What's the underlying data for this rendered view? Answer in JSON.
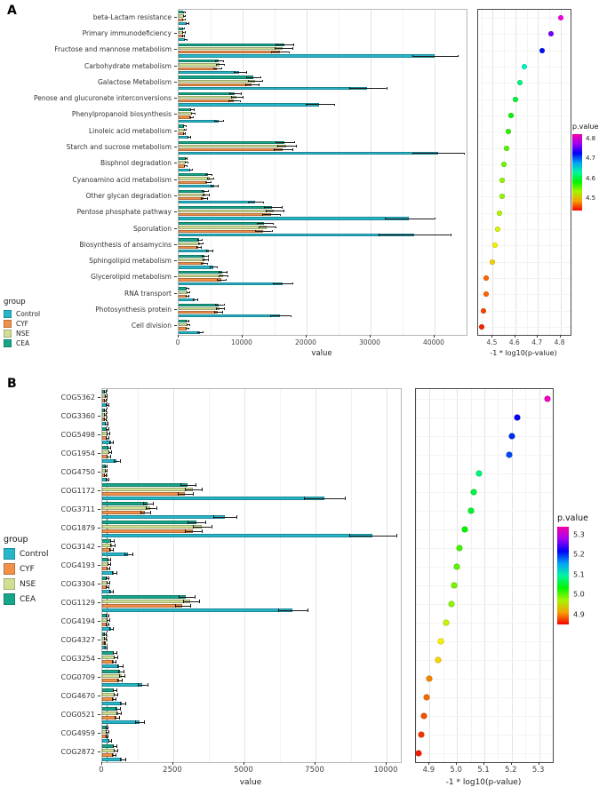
{
  "figure": {
    "panelA_letter": "A",
    "panelB_letter": "B"
  },
  "colors": {
    "group": {
      "Control": "#25b6c9",
      "CYF": "#f19048",
      "NSE": "#cfe095",
      "CEA": "#17a589"
    }
  },
  "legends": {
    "groupA": {
      "title": "group",
      "items": [
        "Control",
        "CYF",
        "NSE",
        "CEA"
      ]
    },
    "groupB": {
      "title": "group",
      "items": [
        "Control",
        "CYF",
        "NSE",
        "CEA"
      ]
    },
    "pvalueA": {
      "title": "p.value",
      "ticks": [
        "4.8",
        "4.7",
        "4.6",
        "4.5"
      ],
      "domain": [
        4.44,
        4.82
      ]
    },
    "pvalueB": {
      "title": "p.value",
      "ticks": [
        "5.3",
        "5.2",
        "5.1",
        "5.0",
        "4.9"
      ],
      "domain": [
        4.85,
        5.34
      ]
    }
  },
  "chart_data": [
    {
      "id": "barA",
      "type": "bar",
      "orientation": "horizontal",
      "panel": "A",
      "xlabel": "value",
      "xlim": [
        0,
        45000
      ],
      "xticks": [
        0,
        10000,
        20000,
        30000,
        40000
      ],
      "xtick_labels": [
        "0",
        "10000",
        "20000",
        "30000",
        "40000"
      ],
      "categories": [
        "beta-Lactam resistance",
        "Primary immunodeficiency",
        "Fructose and mannose metabolism",
        "Carbohydrate metabolism",
        "Galactose Metabolism",
        "Penose and glucuronate interconversions",
        "Phenylpropanoid biosynthesis",
        "Linoleic acid metabolism",
        "Starch and sucrose metabolism",
        "Bisphnol degradation",
        "Cyanoamino acid metabolism",
        "Other glycan degradation",
        "Pentose phosphate pathway",
        "Sporulation",
        "Biosynthesis of ansamycins",
        "Sphingolipid metabolism",
        "Glycerolipid metabolism",
        "RNA transport",
        "Photosynthesis protein",
        "Cell division"
      ],
      "series": [
        {
          "name": "Control",
          "color": "#25b6c9",
          "values": [
            1200,
            1000,
            40000,
            9500,
            29500,
            22000,
            6200,
            1500,
            40500,
            1800,
            5500,
            12000,
            36000,
            36800,
            4700,
            5400,
            16200,
            2500,
            15800,
            3300
          ],
          "errors": [
            150,
            120,
            3500,
            900,
            2800,
            2200,
            600,
            180,
            4000,
            200,
            500,
            1100,
            3800,
            5500,
            450,
            500,
            1500,
            250,
            1500,
            350
          ]
        },
        {
          "name": "CYF",
          "color": "#f19048",
          "values": [
            700,
            600,
            15800,
            6000,
            11400,
            8600,
            1900,
            800,
            16200,
            1000,
            4500,
            3900,
            14400,
            13200,
            3100,
            3900,
            6600,
            1200,
            6100,
            1200
          ],
          "errors": [
            90,
            80,
            1300,
            550,
            1000,
            800,
            200,
            100,
            1400,
            120,
            400,
            380,
            1300,
            1200,
            300,
            380,
            600,
            140,
            580,
            140
          ]
        },
        {
          "name": "NSE",
          "color": "#cfe095",
          "values": [
            800,
            700,
            16300,
            6400,
            11900,
            9000,
            2100,
            900,
            16800,
            1100,
            4800,
            4200,
            14900,
            13700,
            3300,
            4100,
            6900,
            1400,
            6400,
            1400
          ],
          "errors": [
            95,
            85,
            1350,
            580,
            1050,
            850,
            210,
            105,
            1450,
            125,
            420,
            400,
            1350,
            1250,
            310,
            390,
            620,
            150,
            600,
            150
          ]
        },
        {
          "name": "CEA",
          "color": "#17a589",
          "values": [
            750,
            650,
            16500,
            6200,
            11600,
            8800,
            2000,
            850,
            16500,
            1050,
            4600,
            4000,
            14600,
            13400,
            3200,
            4000,
            6800,
            1300,
            6300,
            1300
          ],
          "errors": [
            92,
            82,
            1320,
            560,
            1020,
            820,
            205,
            102,
            1420,
            122,
            410,
            390,
            1320,
            1220,
            305,
            385,
            610,
            145,
            590,
            145
          ]
        }
      ]
    },
    {
      "id": "dotA",
      "type": "scatter",
      "panel": "A",
      "xlabel": "-1 * log10(p-value)",
      "xlim": [
        4.435,
        4.845
      ],
      "xticks": [
        4.5,
        4.6,
        4.7,
        4.8
      ],
      "xtick_labels": [
        "4.5",
        "4.6",
        "4.7",
        "4.8"
      ],
      "categories_ref": "barA",
      "color_domain": [
        4.44,
        4.82
      ],
      "values": [
        4.8,
        4.76,
        4.72,
        4.64,
        4.62,
        4.6,
        4.58,
        4.57,
        4.56,
        4.55,
        4.54,
        4.54,
        4.53,
        4.52,
        4.51,
        4.5,
        4.47,
        4.47,
        4.46,
        4.45
      ]
    },
    {
      "id": "barB",
      "type": "bar",
      "orientation": "horizontal",
      "panel": "B",
      "xlabel": "value",
      "xlim": [
        0,
        10500
      ],
      "ref_line": 150,
      "xticks": [
        0,
        2500,
        5000,
        7500,
        10000
      ],
      "xtick_labels": [
        "0",
        "2500",
        "5000",
        "7500",
        "10000"
      ],
      "categories": [
        "COG5362",
        "COG3360",
        "COG5498",
        "COG1954",
        "COG4750",
        "COG1172",
        "COG3711",
        "COG1879",
        "COG3142",
        "COG4193",
        "COG3304",
        "COG1129",
        "COG4194",
        "COG4327",
        "COG3254",
        "COG0709",
        "COG4670",
        "COG0521",
        "COG4959",
        "COG2872"
      ],
      "series": [
        {
          "name": "Control",
          "color": "#25b6c9",
          "values": [
            150,
            120,
            300,
            500,
            150,
            7800,
            4300,
            9500,
            900,
            400,
            300,
            6700,
            300,
            100,
            600,
            1400,
            700,
            1300,
            250,
            700
          ],
          "errors": [
            30,
            25,
            50,
            80,
            30,
            700,
            400,
            800,
            120,
            60,
            50,
            500,
            50,
            20,
            80,
            150,
            90,
            150,
            40,
            90
          ]
        },
        {
          "name": "CYF",
          "color": "#f19048",
          "values": [
            80,
            70,
            150,
            200,
            90,
            2900,
            1500,
            3200,
            300,
            200,
            150,
            2800,
            150,
            60,
            400,
            600,
            400,
            500,
            130,
            400
          ],
          "errors": [
            15,
            12,
            25,
            35,
            15,
            250,
            150,
            280,
            50,
            30,
            25,
            250,
            25,
            10,
            50,
            70,
            50,
            60,
            20,
            50
          ]
        },
        {
          "name": "NSE",
          "color": "#cfe095",
          "values": [
            100,
            90,
            180,
            250,
            110,
            3200,
            1700,
            3500,
            350,
            230,
            180,
            3100,
            180,
            80,
            450,
            680,
            450,
            560,
            150,
            450
          ],
          "errors": [
            18,
            14,
            28,
            40,
            18,
            280,
            160,
            300,
            55,
            33,
            28,
            270,
            28,
            12,
            55,
            75,
            55,
            65,
            22,
            55
          ]
        },
        {
          "name": "CEA",
          "color": "#17a589",
          "values": [
            90,
            80,
            160,
            220,
            100,
            3000,
            1600,
            3300,
            320,
            210,
            160,
            2950,
            160,
            70,
            420,
            640,
            420,
            530,
            140,
            420
          ],
          "errors": [
            16,
            13,
            26,
            38,
            16,
            260,
            155,
            290,
            52,
            31,
            26,
            260,
            26,
            11,
            52,
            72,
            52,
            62,
            21,
            52
          ]
        }
      ]
    },
    {
      "id": "dotB",
      "type": "scatter",
      "panel": "B",
      "xlabel": "-1 * log10(p-value)",
      "xlim": [
        4.85,
        5.35
      ],
      "xticks": [
        4.9,
        5.0,
        5.1,
        5.2,
        5.3
      ],
      "xtick_labels": [
        "4.9",
        "5.0",
        "5.1",
        "5.2",
        "5.3"
      ],
      "categories_ref": "barB",
      "color_domain": [
        4.85,
        5.34
      ],
      "values": [
        5.33,
        5.22,
        5.2,
        5.19,
        5.08,
        5.06,
        5.05,
        5.03,
        5.01,
        5.0,
        4.99,
        4.98,
        4.96,
        4.94,
        4.93,
        4.9,
        4.89,
        4.88,
        4.87,
        4.86
      ]
    }
  ]
}
